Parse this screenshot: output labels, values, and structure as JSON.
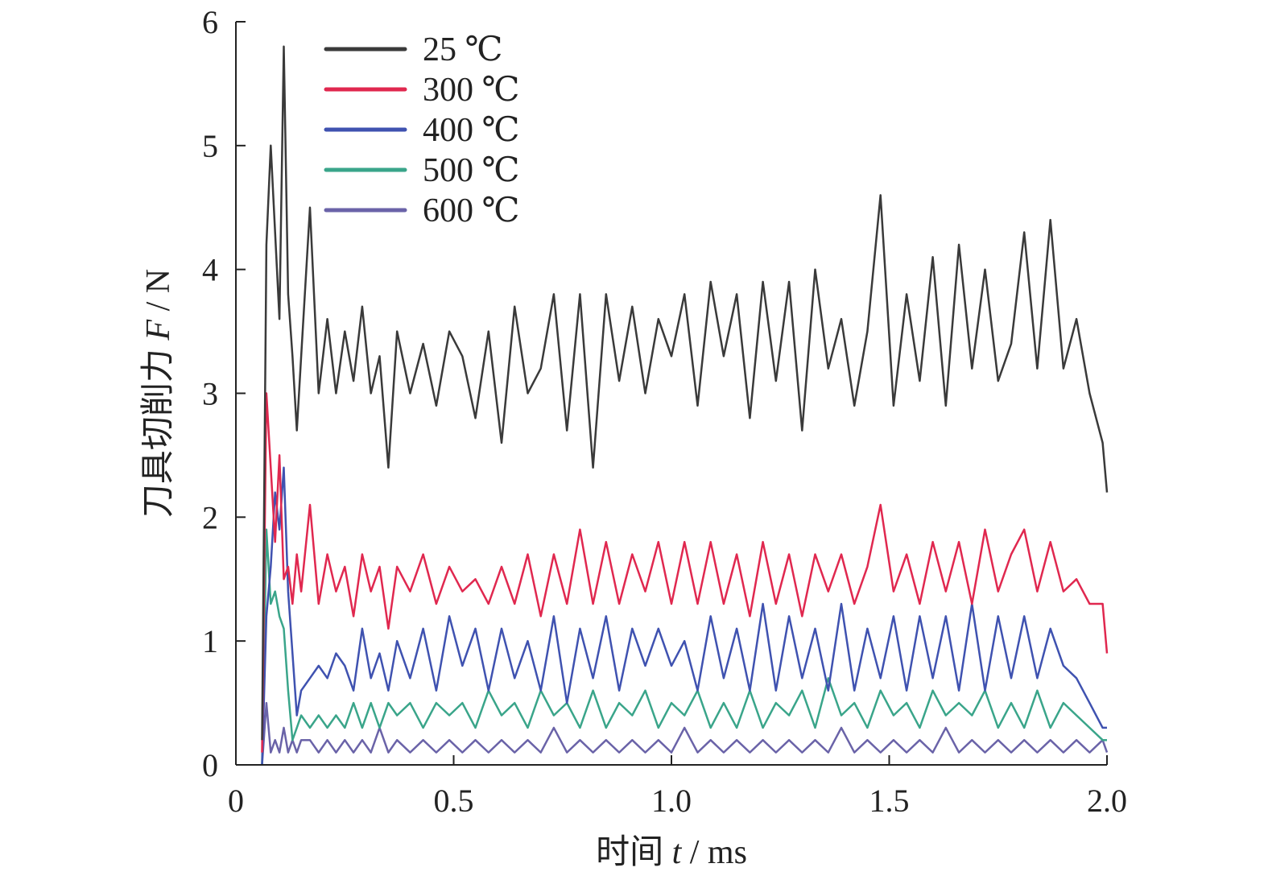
{
  "chart_data": {
    "type": "line",
    "title": "",
    "xlabel": {
      "prefix": "时间 ",
      "var": "t",
      "suffix": " / ms"
    },
    "ylabel": {
      "prefix": "刀具切削力 ",
      "var": "F",
      "suffix": " / N"
    },
    "xlim": [
      0,
      2.0
    ],
    "ylim": [
      0,
      6
    ],
    "xticks": [
      0,
      0.5,
      1.0,
      1.5,
      2.0
    ],
    "xtick_labels": [
      "0",
      "0.5",
      "1.0",
      "1.5",
      "2.0"
    ],
    "yticks": [
      0,
      1,
      2,
      3,
      4,
      5,
      6
    ],
    "ytick_labels": [
      "0",
      "1",
      "2",
      "3",
      "4",
      "5",
      "6"
    ],
    "grid": false,
    "legend_position": "top-left",
    "series": [
      {
        "name": "25 ℃",
        "color": "#3a3a3a",
        "x": [
          0.06,
          0.07,
          0.08,
          0.09,
          0.1,
          0.11,
          0.12,
          0.13,
          0.14,
          0.15,
          0.17,
          0.19,
          0.21,
          0.23,
          0.25,
          0.27,
          0.29,
          0.31,
          0.33,
          0.35,
          0.37,
          0.4,
          0.43,
          0.46,
          0.49,
          0.52,
          0.55,
          0.58,
          0.61,
          0.64,
          0.67,
          0.7,
          0.73,
          0.76,
          0.79,
          0.82,
          0.85,
          0.88,
          0.91,
          0.94,
          0.97,
          1.0,
          1.03,
          1.06,
          1.09,
          1.12,
          1.15,
          1.18,
          1.21,
          1.24,
          1.27,
          1.3,
          1.33,
          1.36,
          1.39,
          1.42,
          1.45,
          1.48,
          1.51,
          1.54,
          1.57,
          1.6,
          1.63,
          1.66,
          1.69,
          1.72,
          1.75,
          1.78,
          1.81,
          1.84,
          1.87,
          1.9,
          1.93,
          1.96,
          1.99,
          2.0
        ],
        "y": [
          0.2,
          4.2,
          5.0,
          4.3,
          3.6,
          5.8,
          3.8,
          3.3,
          2.7,
          3.3,
          4.5,
          3.0,
          3.6,
          3.0,
          3.5,
          3.1,
          3.7,
          3.0,
          3.3,
          2.4,
          3.5,
          3.0,
          3.4,
          2.9,
          3.5,
          3.3,
          2.8,
          3.5,
          2.6,
          3.7,
          3.0,
          3.2,
          3.8,
          2.7,
          3.8,
          2.4,
          3.8,
          3.1,
          3.7,
          3.0,
          3.6,
          3.3,
          3.8,
          2.9,
          3.9,
          3.3,
          3.8,
          2.8,
          3.9,
          3.1,
          3.9,
          2.7,
          4.0,
          3.2,
          3.6,
          2.9,
          3.5,
          4.6,
          2.9,
          3.8,
          3.1,
          4.1,
          2.9,
          4.2,
          3.2,
          4.0,
          3.1,
          3.4,
          4.3,
          3.2,
          4.4,
          3.2,
          3.6,
          3.0,
          2.6,
          2.2
        ]
      },
      {
        "name": "300 ℃",
        "color": "#e0284f",
        "x": [
          0.06,
          0.07,
          0.08,
          0.09,
          0.1,
          0.11,
          0.12,
          0.13,
          0.14,
          0.15,
          0.17,
          0.19,
          0.21,
          0.23,
          0.25,
          0.27,
          0.29,
          0.31,
          0.33,
          0.35,
          0.37,
          0.4,
          0.43,
          0.46,
          0.49,
          0.52,
          0.55,
          0.58,
          0.61,
          0.64,
          0.67,
          0.7,
          0.73,
          0.76,
          0.79,
          0.82,
          0.85,
          0.88,
          0.91,
          0.94,
          0.97,
          1.0,
          1.03,
          1.06,
          1.09,
          1.12,
          1.15,
          1.18,
          1.21,
          1.24,
          1.27,
          1.3,
          1.33,
          1.36,
          1.39,
          1.42,
          1.45,
          1.48,
          1.51,
          1.54,
          1.57,
          1.6,
          1.63,
          1.66,
          1.69,
          1.72,
          1.75,
          1.78,
          1.81,
          1.84,
          1.87,
          1.9,
          1.93,
          1.96,
          1.99,
          2.0
        ],
        "y": [
          0.1,
          3.0,
          2.4,
          1.8,
          2.5,
          1.5,
          1.6,
          1.3,
          1.7,
          1.4,
          2.1,
          1.3,
          1.7,
          1.4,
          1.6,
          1.2,
          1.7,
          1.4,
          1.6,
          1.1,
          1.6,
          1.4,
          1.7,
          1.3,
          1.6,
          1.4,
          1.5,
          1.3,
          1.6,
          1.3,
          1.7,
          1.2,
          1.7,
          1.3,
          1.9,
          1.3,
          1.8,
          1.3,
          1.7,
          1.4,
          1.8,
          1.3,
          1.8,
          1.3,
          1.8,
          1.3,
          1.7,
          1.2,
          1.8,
          1.3,
          1.7,
          1.2,
          1.7,
          1.4,
          1.7,
          1.3,
          1.6,
          2.1,
          1.4,
          1.7,
          1.3,
          1.8,
          1.4,
          1.8,
          1.3,
          1.9,
          1.4,
          1.7,
          1.9,
          1.4,
          1.8,
          1.4,
          1.5,
          1.3,
          1.3,
          0.9
        ]
      },
      {
        "name": "400 ℃",
        "color": "#3f52b0",
        "x": [
          0.06,
          0.07,
          0.08,
          0.09,
          0.1,
          0.11,
          0.12,
          0.13,
          0.14,
          0.15,
          0.17,
          0.19,
          0.21,
          0.23,
          0.25,
          0.27,
          0.29,
          0.31,
          0.33,
          0.35,
          0.37,
          0.4,
          0.43,
          0.46,
          0.49,
          0.52,
          0.55,
          0.58,
          0.61,
          0.64,
          0.67,
          0.7,
          0.73,
          0.76,
          0.79,
          0.82,
          0.85,
          0.88,
          0.91,
          0.94,
          0.97,
          1.0,
          1.03,
          1.06,
          1.09,
          1.12,
          1.15,
          1.18,
          1.21,
          1.24,
          1.27,
          1.3,
          1.33,
          1.36,
          1.39,
          1.42,
          1.45,
          1.48,
          1.51,
          1.54,
          1.57,
          1.6,
          1.63,
          1.66,
          1.69,
          1.72,
          1.75,
          1.78,
          1.81,
          1.84,
          1.87,
          1.9,
          1.93,
          1.96,
          1.99,
          2.0
        ],
        "y": [
          0.0,
          1.2,
          1.6,
          2.2,
          1.9,
          2.4,
          1.4,
          0.9,
          0.4,
          0.6,
          0.7,
          0.8,
          0.7,
          0.9,
          0.8,
          0.6,
          1.1,
          0.7,
          0.9,
          0.6,
          1.0,
          0.7,
          1.1,
          0.6,
          1.2,
          0.8,
          1.1,
          0.6,
          1.1,
          0.7,
          1.0,
          0.6,
          1.2,
          0.5,
          1.1,
          0.7,
          1.2,
          0.6,
          1.1,
          0.8,
          1.1,
          0.8,
          1.0,
          0.6,
          1.2,
          0.7,
          1.1,
          0.6,
          1.3,
          0.6,
          1.2,
          0.7,
          1.1,
          0.6,
          1.3,
          0.6,
          1.1,
          0.7,
          1.2,
          0.6,
          1.2,
          0.7,
          1.2,
          0.6,
          1.3,
          0.6,
          1.2,
          0.7,
          1.2,
          0.7,
          1.1,
          0.8,
          0.7,
          0.5,
          0.3,
          0.3
        ]
      },
      {
        "name": "500 ℃",
        "color": "#3aa58a",
        "x": [
          0.06,
          0.07,
          0.08,
          0.09,
          0.1,
          0.11,
          0.12,
          0.13,
          0.14,
          0.15,
          0.17,
          0.19,
          0.21,
          0.23,
          0.25,
          0.27,
          0.29,
          0.31,
          0.33,
          0.35,
          0.37,
          0.4,
          0.43,
          0.46,
          0.49,
          0.52,
          0.55,
          0.58,
          0.61,
          0.64,
          0.67,
          0.7,
          0.73,
          0.76,
          0.79,
          0.82,
          0.85,
          0.88,
          0.91,
          0.94,
          0.97,
          1.0,
          1.03,
          1.06,
          1.09,
          1.12,
          1.15,
          1.18,
          1.21,
          1.24,
          1.27,
          1.3,
          1.33,
          1.36,
          1.39,
          1.42,
          1.45,
          1.48,
          1.51,
          1.54,
          1.57,
          1.6,
          1.63,
          1.66,
          1.69,
          1.72,
          1.75,
          1.78,
          1.81,
          1.84,
          1.87,
          1.9,
          1.93,
          1.96,
          1.99,
          2.0
        ],
        "y": [
          0.0,
          1.9,
          1.3,
          1.4,
          1.2,
          1.1,
          0.6,
          0.2,
          0.3,
          0.4,
          0.3,
          0.4,
          0.3,
          0.4,
          0.3,
          0.5,
          0.3,
          0.5,
          0.3,
          0.5,
          0.4,
          0.5,
          0.3,
          0.5,
          0.4,
          0.5,
          0.3,
          0.6,
          0.4,
          0.5,
          0.3,
          0.6,
          0.4,
          0.5,
          0.3,
          0.6,
          0.3,
          0.5,
          0.4,
          0.6,
          0.3,
          0.5,
          0.4,
          0.6,
          0.3,
          0.5,
          0.3,
          0.6,
          0.3,
          0.5,
          0.4,
          0.6,
          0.3,
          0.7,
          0.4,
          0.5,
          0.3,
          0.6,
          0.4,
          0.5,
          0.3,
          0.6,
          0.4,
          0.5,
          0.4,
          0.6,
          0.3,
          0.5,
          0.3,
          0.6,
          0.3,
          0.5,
          0.4,
          0.3,
          0.2,
          0.2
        ]
      },
      {
        "name": "600 ℃",
        "color": "#6a63a8",
        "x": [
          0.06,
          0.07,
          0.08,
          0.09,
          0.1,
          0.11,
          0.12,
          0.13,
          0.14,
          0.15,
          0.17,
          0.19,
          0.21,
          0.23,
          0.25,
          0.27,
          0.29,
          0.31,
          0.33,
          0.35,
          0.37,
          0.4,
          0.43,
          0.46,
          0.49,
          0.52,
          0.55,
          0.58,
          0.61,
          0.64,
          0.67,
          0.7,
          0.73,
          0.76,
          0.79,
          0.82,
          0.85,
          0.88,
          0.91,
          0.94,
          0.97,
          1.0,
          1.03,
          1.06,
          1.09,
          1.12,
          1.15,
          1.18,
          1.21,
          1.24,
          1.27,
          1.3,
          1.33,
          1.36,
          1.39,
          1.42,
          1.45,
          1.48,
          1.51,
          1.54,
          1.57,
          1.6,
          1.63,
          1.66,
          1.69,
          1.72,
          1.75,
          1.78,
          1.81,
          1.84,
          1.87,
          1.9,
          1.93,
          1.96,
          1.99,
          2.0
        ],
        "y": [
          0.0,
          0.5,
          0.1,
          0.2,
          0.1,
          0.3,
          0.1,
          0.2,
          0.1,
          0.2,
          0.2,
          0.1,
          0.2,
          0.1,
          0.2,
          0.1,
          0.2,
          0.1,
          0.3,
          0.1,
          0.2,
          0.1,
          0.2,
          0.1,
          0.2,
          0.1,
          0.2,
          0.1,
          0.2,
          0.1,
          0.2,
          0.1,
          0.3,
          0.1,
          0.2,
          0.1,
          0.2,
          0.1,
          0.2,
          0.1,
          0.2,
          0.1,
          0.3,
          0.1,
          0.2,
          0.1,
          0.2,
          0.1,
          0.2,
          0.1,
          0.2,
          0.1,
          0.2,
          0.1,
          0.3,
          0.1,
          0.2,
          0.1,
          0.2,
          0.1,
          0.2,
          0.1,
          0.3,
          0.1,
          0.2,
          0.1,
          0.2,
          0.1,
          0.2,
          0.1,
          0.2,
          0.1,
          0.2,
          0.1,
          0.2,
          0.1
        ]
      }
    ]
  }
}
